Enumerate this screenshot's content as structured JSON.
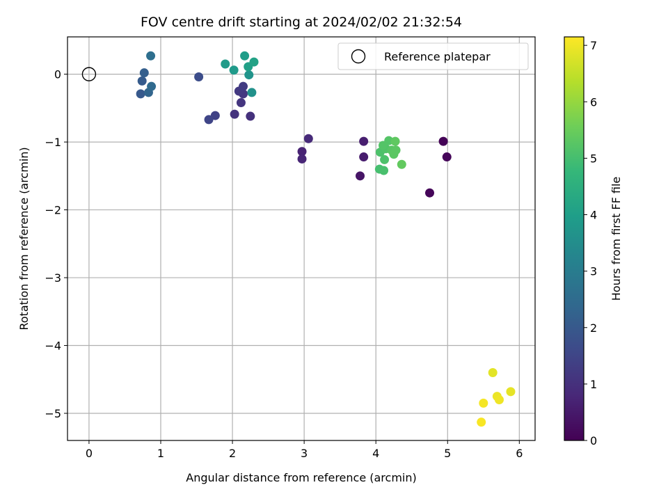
{
  "chart_data": {
    "type": "scatter",
    "title": "FOV centre drift starting at 2024/02/02 21:32:54",
    "xlabel": "Angular distance from reference (arcmin)",
    "ylabel": "Rotation from reference (arcmin)",
    "xlim": [
      -0.3,
      6.22
    ],
    "ylim": [
      -5.4,
      0.55
    ],
    "xticks": [
      0,
      1,
      2,
      3,
      4,
      5,
      6
    ],
    "yticks": [
      0,
      -1,
      -2,
      -3,
      -4,
      -5
    ],
    "xtick_labels": [
      "0",
      "1",
      "2",
      "3",
      "4",
      "5",
      "6"
    ],
    "ytick_labels": [
      "0",
      "−1",
      "−2",
      "−3",
      "−4",
      "−5"
    ],
    "grid": true,
    "legend": {
      "position": "top-right",
      "label": "Reference platepar"
    },
    "reference_point": {
      "x": 0,
      "y": 0
    },
    "colorbar": {
      "label": "Hours from first FF file",
      "range": [
        0,
        7.15
      ],
      "ticks": [
        0,
        1,
        2,
        3,
        4,
        5,
        6,
        7
      ],
      "tick_labels": [
        "0",
        "1",
        "2",
        "3",
        "4",
        "5",
        "6",
        "7"
      ],
      "colormap": "viridis",
      "stops": [
        "#440154",
        "#482878",
        "#3e4989",
        "#31688e",
        "#26828e",
        "#1f9e89",
        "#35b779",
        "#6ece58",
        "#b5de2b",
        "#fde725"
      ]
    },
    "points": [
      {
        "x": 4.94,
        "y": -0.99,
        "hours": 0.05
      },
      {
        "x": 4.99,
        "y": -1.22,
        "hours": 0.1
      },
      {
        "x": 4.75,
        "y": -1.75,
        "hours": 0.1
      },
      {
        "x": 3.78,
        "y": -1.5,
        "hours": 0.4
      },
      {
        "x": 3.83,
        "y": -0.99,
        "hours": 0.6
      },
      {
        "x": 3.83,
        "y": -1.22,
        "hours": 0.55
      },
      {
        "x": 2.97,
        "y": -1.14,
        "hours": 0.7
      },
      {
        "x": 2.97,
        "y": -1.25,
        "hours": 0.75
      },
      {
        "x": 3.06,
        "y": -0.95,
        "hours": 0.85
      },
      {
        "x": 2.25,
        "y": -0.62,
        "hours": 1.0
      },
      {
        "x": 2.03,
        "y": -0.59,
        "hours": 1.05
      },
      {
        "x": 2.12,
        "y": -0.42,
        "hours": 1.1
      },
      {
        "x": 2.15,
        "y": -0.29,
        "hours": 1.15
      },
      {
        "x": 2.09,
        "y": -0.25,
        "hours": 1.2
      },
      {
        "x": 2.15,
        "y": -0.18,
        "hours": 1.25
      },
      {
        "x": 1.76,
        "y": -0.61,
        "hours": 1.4
      },
      {
        "x": 1.67,
        "y": -0.67,
        "hours": 1.5
      },
      {
        "x": 1.53,
        "y": -0.04,
        "hours": 1.7
      },
      {
        "x": 0.72,
        "y": -0.29,
        "hours": 2.0
      },
      {
        "x": 0.74,
        "y": -0.1,
        "hours": 2.05
      },
      {
        "x": 0.77,
        "y": 0.02,
        "hours": 2.15
      },
      {
        "x": 0.83,
        "y": -0.27,
        "hours": 2.3
      },
      {
        "x": 0.87,
        "y": -0.18,
        "hours": 2.45
      },
      {
        "x": 0.86,
        "y": 0.27,
        "hours": 2.6
      },
      {
        "x": 2.27,
        "y": -0.27,
        "hours": 3.6
      },
      {
        "x": 2.23,
        "y": -0.01,
        "hours": 3.7
      },
      {
        "x": 2.02,
        "y": 0.06,
        "hours": 3.85
      },
      {
        "x": 1.9,
        "y": 0.15,
        "hours": 3.9
      },
      {
        "x": 2.17,
        "y": 0.27,
        "hours": 3.95
      },
      {
        "x": 2.22,
        "y": 0.11,
        "hours": 4.05
      },
      {
        "x": 2.3,
        "y": 0.18,
        "hours": 4.1
      },
      {
        "x": 4.05,
        "y": -1.4,
        "hours": 5.0
      },
      {
        "x": 4.11,
        "y": -1.42,
        "hours": 5.05
      },
      {
        "x": 4.12,
        "y": -1.26,
        "hours": 5.1
      },
      {
        "x": 4.06,
        "y": -1.15,
        "hours": 5.1
      },
      {
        "x": 4.14,
        "y": -1.1,
        "hours": 5.15
      },
      {
        "x": 4.1,
        "y": -1.05,
        "hours": 5.2
      },
      {
        "x": 4.18,
        "y": -0.98,
        "hours": 5.2
      },
      {
        "x": 4.22,
        "y": -1.12,
        "hours": 5.25
      },
      {
        "x": 4.25,
        "y": -1.18,
        "hours": 5.3
      },
      {
        "x": 4.28,
        "y": -1.12,
        "hours": 5.3
      },
      {
        "x": 4.27,
        "y": -0.99,
        "hours": 5.35
      },
      {
        "x": 4.36,
        "y": -1.33,
        "hours": 5.4
      },
      {
        "x": 5.63,
        "y": -4.4,
        "hours": 6.85
      },
      {
        "x": 5.69,
        "y": -4.75,
        "hours": 6.95
      },
      {
        "x": 5.72,
        "y": -4.8,
        "hours": 7.0
      },
      {
        "x": 5.88,
        "y": -4.68,
        "hours": 6.9
      },
      {
        "x": 5.5,
        "y": -4.85,
        "hours": 7.05
      },
      {
        "x": 5.47,
        "y": -5.13,
        "hours": 7.1
      }
    ]
  }
}
